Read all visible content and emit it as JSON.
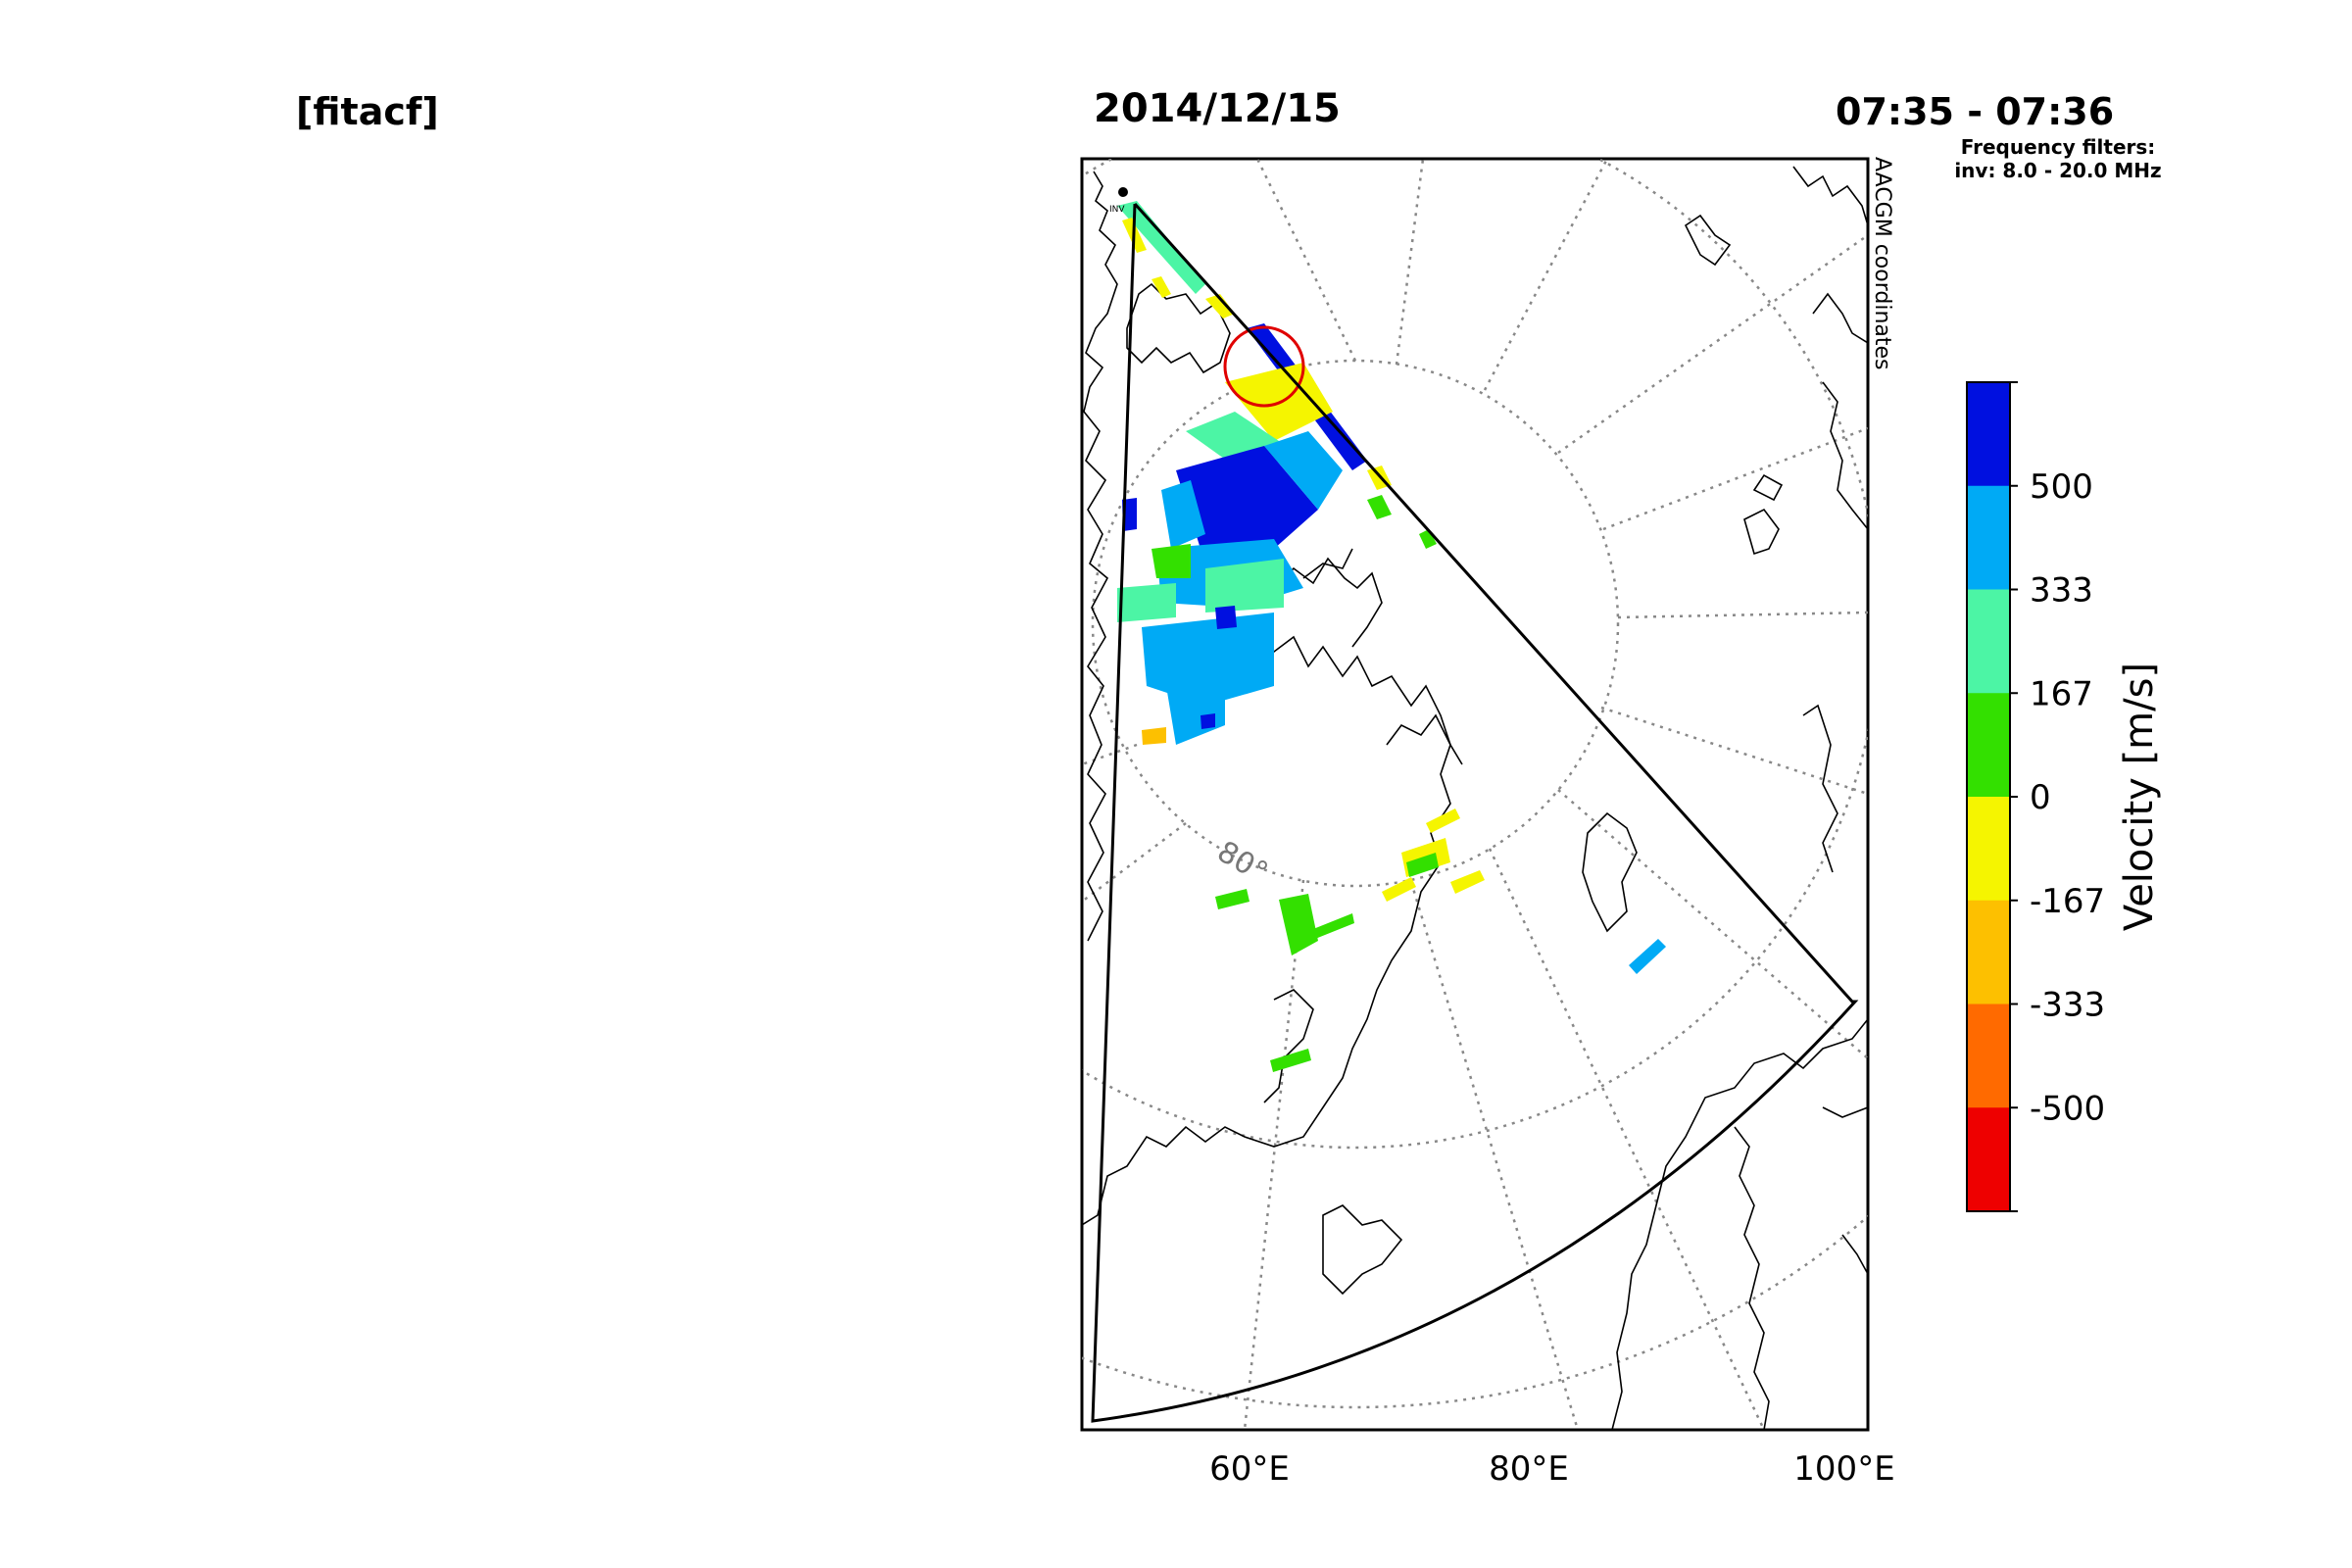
{
  "header": {
    "data_type": "[fitacf]",
    "date": "2014/12/15",
    "time_range": "07:35 - 07:36"
  },
  "filters": {
    "title": "Frequency filters:",
    "entry": "inv: 8.0 - 20.0 MHz"
  },
  "map": {
    "coordinate_label": "AACGM coordinates",
    "radar_label": "INV",
    "latitude_label": "80°",
    "longitude_ticks": [
      "60°E",
      "80°E",
      "100°E"
    ]
  },
  "colorbar": {
    "label": "Velocity [m/s]",
    "ticks": [
      "500",
      "333",
      "167",
      "0",
      "-167",
      "-333",
      "-500"
    ],
    "colors": [
      "#0010e0",
      "#00aaf5",
      "#4cf5a5",
      "#33e000",
      "#f5f500",
      "#fdc000",
      "#ff6a00",
      "#ee0000"
    ]
  }
}
